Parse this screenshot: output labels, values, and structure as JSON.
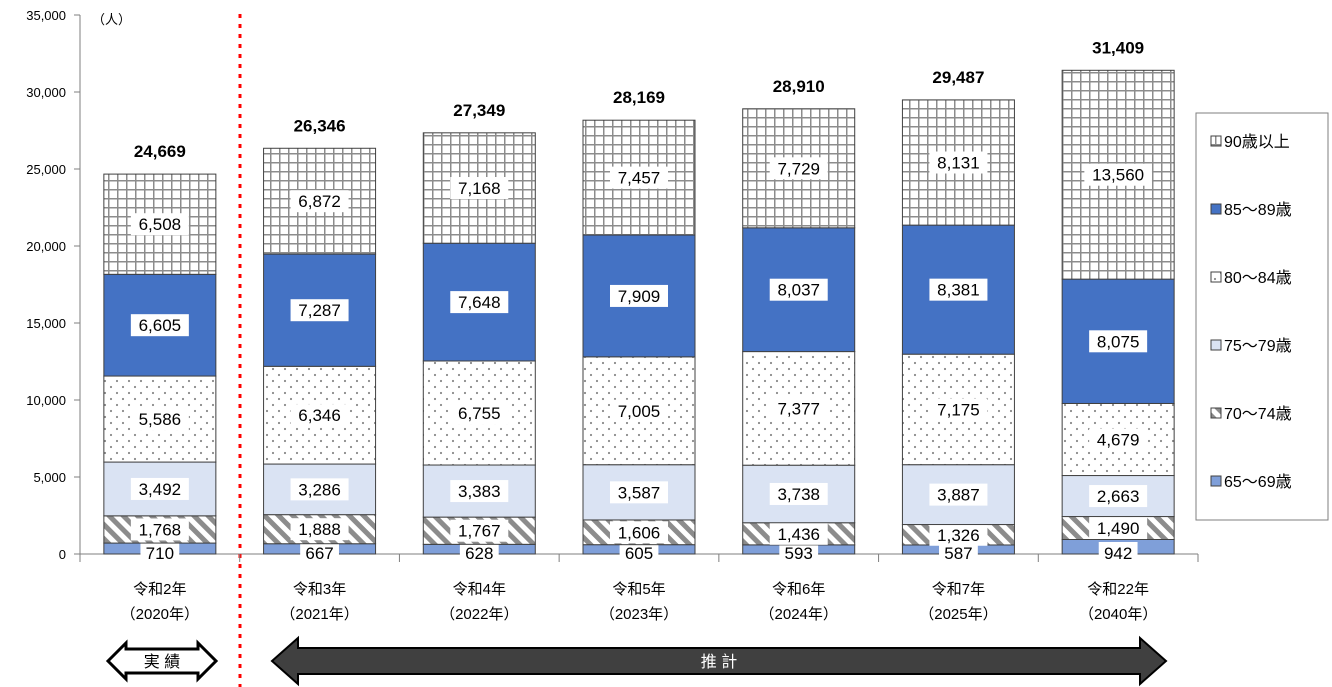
{
  "chart_data": {
    "type": "bar",
    "stacked": true,
    "unit_label": "（人）",
    "ylim": [
      0,
      35000
    ],
    "y_ticks": [
      "0",
      "5,000",
      "10,000",
      "15,000",
      "20,000",
      "25,000",
      "30,000",
      "35,000"
    ],
    "categories": [
      [
        "令和2年",
        "（2020年）"
      ],
      [
        "令和3年",
        "（2021年）"
      ],
      [
        "令和4年",
        "（2022年）"
      ],
      [
        "令和5年",
        "（2023年）"
      ],
      [
        "令和6年",
        "（2024年）"
      ],
      [
        "令和7年",
        "（2025年）"
      ],
      [
        "令和22年",
        "（2040年）"
      ]
    ],
    "series": [
      {
        "name": "65～69歳",
        "values": [
          710,
          667,
          628,
          605,
          593,
          587,
          942
        ],
        "labels": [
          "710",
          "667",
          "628",
          "605",
          "593",
          "587",
          "942"
        ],
        "pattern": "blue-light"
      },
      {
        "name": "70～74歳",
        "values": [
          1768,
          1888,
          1767,
          1606,
          1436,
          1326,
          1490
        ],
        "labels": [
          "1,768",
          "1,888",
          "1,767",
          "1,606",
          "1,436",
          "1,326",
          "1,490"
        ],
        "pattern": "hatch"
      },
      {
        "name": "75～79歳",
        "values": [
          3492,
          3286,
          3383,
          3587,
          3738,
          3887,
          2663
        ],
        "labels": [
          "3,492",
          "3,286",
          "3,383",
          "3,587",
          "3,738",
          "3,887",
          "2,663"
        ],
        "pattern": "pale"
      },
      {
        "name": "80～84歳",
        "values": [
          5586,
          6346,
          6755,
          7005,
          7377,
          7175,
          4679
        ],
        "labels": [
          "5,586",
          "6,346",
          "6,755",
          "7,005",
          "7,377",
          "7,175",
          "4,679"
        ],
        "pattern": "dots"
      },
      {
        "name": "85～89歳",
        "values": [
          6605,
          7287,
          7648,
          7909,
          8037,
          8381,
          8075
        ],
        "labels": [
          "6,605",
          "7,287",
          "7,648",
          "7,909",
          "8,037",
          "8,381",
          "8,075"
        ],
        "pattern": "blue"
      },
      {
        "name": "90歳以上",
        "values": [
          6508,
          6872,
          7168,
          7457,
          7729,
          8131,
          13560
        ],
        "labels": [
          "6,508",
          "6,872",
          "7,168",
          "7,457",
          "7,729",
          "8,131",
          "13,560"
        ],
        "pattern": "grid"
      }
    ],
    "totals": [
      "24,669",
      "26,346",
      "27,349",
      "28,169",
      "28,910",
      "29,487",
      "31,409"
    ],
    "legend_placement": "right",
    "annotations": {
      "actual": "実 績",
      "projection": "推 計"
    },
    "colors": {
      "blue": "#4472c4",
      "blue_light": "#7f9fd9",
      "pale": "#dae3f3",
      "separator": "#ff0000"
    }
  }
}
